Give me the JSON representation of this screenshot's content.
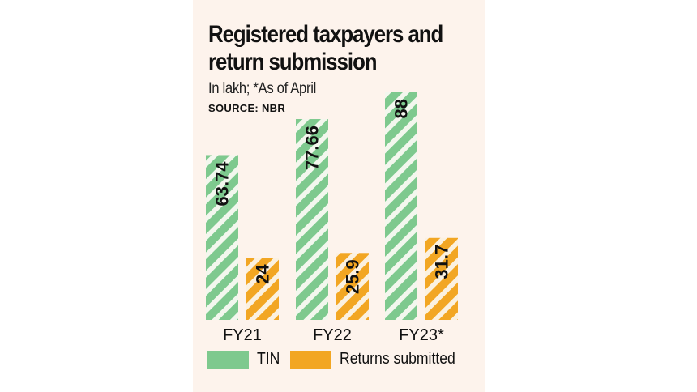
{
  "title_line1": "Registered taxpayers and",
  "title_line2": "return submission",
  "subtitle": "In lakh; *As of April",
  "source": "SOURCE: NBR",
  "colors": {
    "tin": "#7ec98e",
    "returns": "#f2a623",
    "stripe": "#f3f7ee",
    "background": "#fdf3ec"
  },
  "chart_data": {
    "type": "bar",
    "categories": [
      "FY21",
      "FY22",
      "FY23*"
    ],
    "series": [
      {
        "name": "TIN",
        "values": [
          63.74,
          77.66,
          88
        ]
      },
      {
        "name": "Returns submitted",
        "values": [
          24,
          25.9,
          31.7
        ]
      }
    ],
    "data_labels": [
      [
        "63.74",
        "77.66",
        "88"
      ],
      [
        "24",
        "25.9",
        "31.7"
      ]
    ],
    "ylim": [
      0,
      88
    ]
  },
  "legend": {
    "tin": "TIN",
    "returns": "Returns submitted"
  }
}
